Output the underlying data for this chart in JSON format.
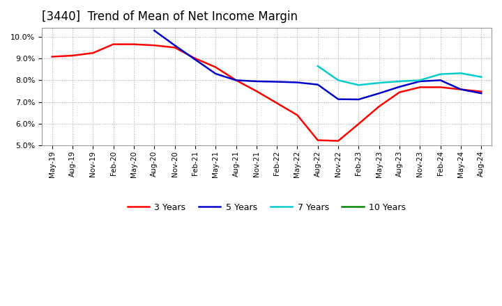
{
  "title": "[3440]  Trend of Mean of Net Income Margin",
  "title_fontsize": 12,
  "background_color": "#ffffff",
  "plot_bg_color": "#ffffff",
  "grid_color": "#aaaaaa",
  "ylim": [
    0.05,
    0.104
  ],
  "yticks": [
    0.05,
    0.06,
    0.07,
    0.08,
    0.09,
    0.1
  ],
  "legend_labels": [
    "3 Years",
    "5 Years",
    "7 Years",
    "10 Years"
  ],
  "legend_colors": [
    "#ff0000",
    "#0000cc",
    "#00cccc",
    "#008800"
  ],
  "xtick_labels": [
    "May-19",
    "Aug-19",
    "Nov-19",
    "Feb-20",
    "May-20",
    "Aug-20",
    "Nov-20",
    "Feb-21",
    "May-21",
    "Aug-21",
    "Nov-21",
    "Feb-22",
    "May-22",
    "Aug-22",
    "Nov-22",
    "Feb-23",
    "May-23",
    "Aug-23",
    "Nov-23",
    "Feb-24",
    "May-24",
    "Aug-24"
  ],
  "series": {
    "3yr": {
      "color": "#ff0000",
      "x_indices": [
        0,
        1,
        2,
        3,
        4,
        5,
        6,
        7,
        8,
        9,
        10,
        11,
        12,
        13,
        14,
        15,
        16,
        17,
        18,
        19,
        20,
        21
      ],
      "values": [
        0.0908,
        0.0913,
        0.0925,
        0.0965,
        0.0965,
        0.096,
        0.095,
        0.09,
        0.086,
        0.08,
        0.075,
        0.0695,
        0.064,
        0.0525,
        0.0522,
        0.06,
        0.068,
        0.0745,
        0.0768,
        0.0768,
        0.0758,
        0.0748
      ]
    },
    "5yr": {
      "color": "#0000cc",
      "x_indices": [
        5,
        6,
        7,
        8,
        9,
        10,
        11,
        12,
        13,
        14,
        15,
        16,
        17,
        18,
        19,
        20,
        21
      ],
      "values": [
        0.1028,
        0.096,
        0.0895,
        0.083,
        0.08,
        0.0795,
        0.0793,
        0.079,
        0.078,
        0.0713,
        0.0712,
        0.074,
        0.077,
        0.0795,
        0.08,
        0.0758,
        0.074
      ]
    },
    "7yr": {
      "color": "#00cccc",
      "x_indices": [
        13,
        14,
        15,
        16,
        17,
        18,
        19,
        20,
        21
      ],
      "values": [
        0.0865,
        0.08,
        0.0778,
        0.0788,
        0.0795,
        0.08,
        0.0828,
        0.0832,
        0.0815
      ]
    },
    "10yr": {
      "color": "#008800",
      "x_indices": [],
      "values": []
    }
  }
}
